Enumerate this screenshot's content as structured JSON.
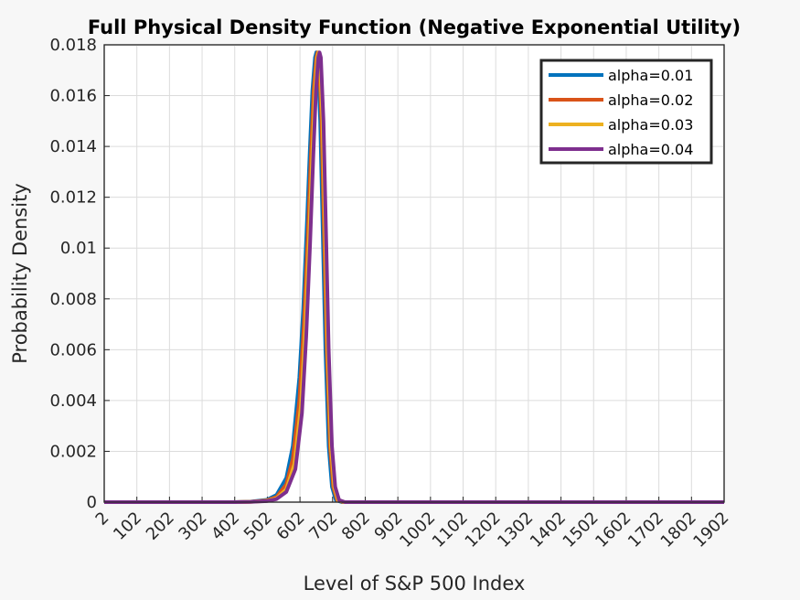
{
  "chart_data": {
    "type": "line",
    "title": "Full Physical Density Function (Negative Exponential Utility)",
    "xlabel": "Level of S&P 500 Index",
    "ylabel": "Probability Density",
    "xlim": [
      2,
      1902
    ],
    "ylim": [
      0,
      0.018
    ],
    "xticks": [
      "2",
      "102",
      "202",
      "302",
      "402",
      "502",
      "602",
      "702",
      "802",
      "902",
      "1002",
      "1102",
      "1202",
      "1302",
      "1402",
      "1502",
      "1602",
      "1702",
      "1802",
      "1902"
    ],
    "yticks": [
      "0",
      "0.002",
      "0.004",
      "0.006",
      "0.008",
      "0.01",
      "0.012",
      "0.014",
      "0.016",
      "0.018"
    ],
    "grid": true,
    "legend_position": "top-right",
    "series": [
      {
        "name": "alpha=0.01",
        "color": "#0072BD",
        "x": [
          2,
          402,
          450,
          500,
          530,
          560,
          580,
          600,
          612,
          624,
          632,
          640,
          648,
          652,
          656,
          664,
          672,
          680,
          690,
          700,
          712,
          730,
          800,
          1902
        ],
        "y": [
          0,
          0,
          2e-05,
          9e-05,
          0.00028,
          0.00095,
          0.0022,
          0.0049,
          0.0076,
          0.0112,
          0.0138,
          0.0162,
          0.0175,
          0.0177,
          0.0175,
          0.015,
          0.0105,
          0.006,
          0.0022,
          0.0006,
          8e-05,
          0,
          0,
          0
        ]
      },
      {
        "name": "alpha=0.02",
        "color": "#D95319",
        "x": [
          2,
          402,
          450,
          500,
          530,
          560,
          580,
          600,
          614,
          626,
          636,
          644,
          652,
          656,
          660,
          668,
          676,
          684,
          694,
          704,
          716,
          734,
          800,
          1902
        ],
        "y": [
          0,
          0,
          1.5e-05,
          7e-05,
          0.0002,
          0.0007,
          0.0017,
          0.004,
          0.007,
          0.0105,
          0.0138,
          0.0162,
          0.0175,
          0.0177,
          0.0175,
          0.015,
          0.0105,
          0.006,
          0.0022,
          0.0006,
          8e-05,
          0,
          0,
          0
        ]
      },
      {
        "name": "alpha=0.03",
        "color": "#EDB120",
        "x": [
          2,
          402,
          450,
          500,
          530,
          560,
          585,
          605,
          618,
          630,
          640,
          648,
          655,
          659,
          663,
          671,
          679,
          687,
          697,
          707,
          719,
          737,
          800,
          1902
        ],
        "y": [
          0,
          0,
          1e-05,
          5e-05,
          0.00015,
          0.0005,
          0.0015,
          0.0038,
          0.0068,
          0.0104,
          0.0138,
          0.0162,
          0.0175,
          0.0177,
          0.0175,
          0.015,
          0.0105,
          0.006,
          0.0022,
          0.0006,
          8e-05,
          0,
          0,
          0
        ]
      },
      {
        "name": "alpha=0.04",
        "color": "#7E2F8E",
        "x": [
          2,
          402,
          450,
          500,
          530,
          560,
          588,
          608,
          621,
          633,
          643,
          651,
          658,
          662,
          666,
          674,
          682,
          690,
          700,
          710,
          722,
          740,
          800,
          1902
        ],
        "y": [
          0,
          0,
          8e-06,
          4e-05,
          0.00012,
          0.0004,
          0.0013,
          0.0035,
          0.0065,
          0.0102,
          0.0137,
          0.0162,
          0.0175,
          0.0177,
          0.0175,
          0.015,
          0.0105,
          0.006,
          0.0022,
          0.0006,
          8e-05,
          0,
          0,
          0
        ]
      }
    ]
  }
}
